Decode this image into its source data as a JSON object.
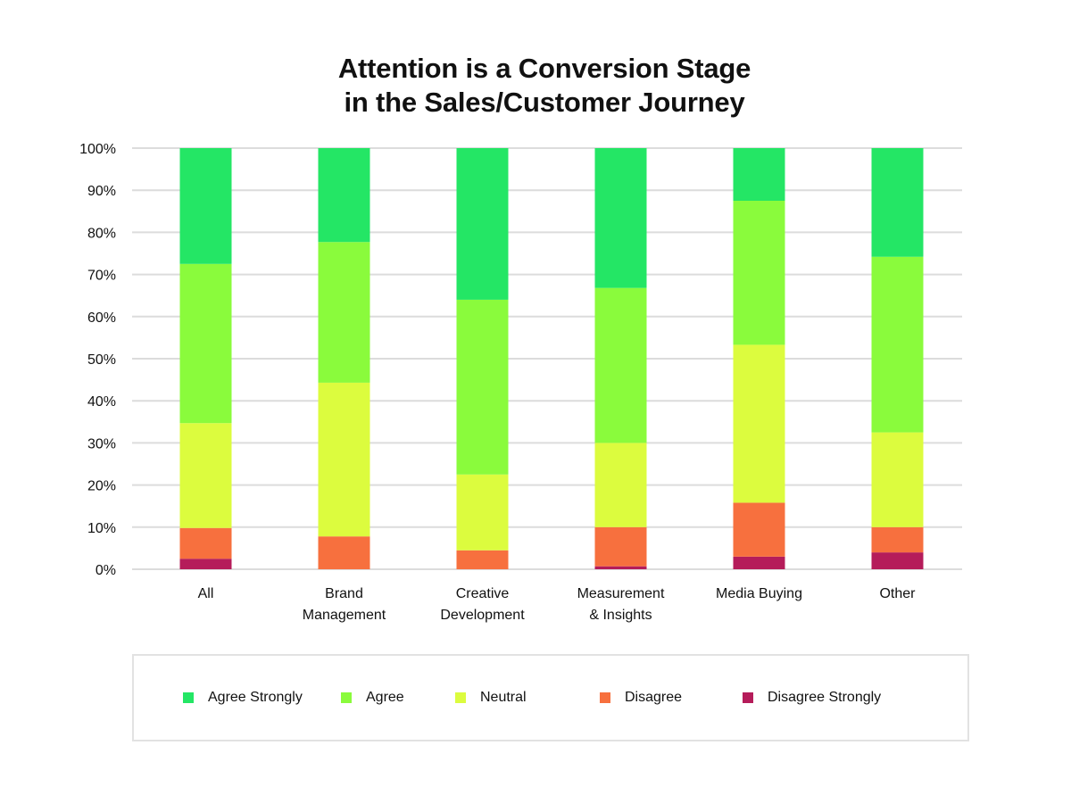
{
  "chart_data": {
    "type": "bar",
    "stacked": true,
    "title_lines": [
      "Attention is a Conversion Stage",
      "in the Sales/Customer Journey"
    ],
    "categories": [
      [
        "All"
      ],
      [
        "Brand",
        "Management"
      ],
      [
        "Creative",
        "Development"
      ],
      [
        "Measurement",
        "& Insights"
      ],
      [
        "Media Buying"
      ],
      [
        "Other"
      ]
    ],
    "yticks": [
      "0%",
      "10%",
      "20%",
      "30%",
      "40%",
      "50%",
      "60%",
      "70%",
      "80%",
      "90%",
      "100%"
    ],
    "ylim": [
      0,
      100
    ],
    "grid": true,
    "legend_position": "bottom",
    "series": [
      {
        "name": "Disagree Strongly",
        "color": "#b51c5a",
        "values": [
          2.5,
          0,
          0,
          0.7,
          3,
          4
        ]
      },
      {
        "name": "Disagree",
        "color": "#f7703e",
        "values": [
          7.3,
          7.8,
          4.5,
          9.3,
          12.8,
          6
        ]
      },
      {
        "name": "Neutral",
        "color": "#dcfc3e",
        "values": [
          24.9,
          36.5,
          18,
          20,
          37.5,
          22.5
        ]
      },
      {
        "name": "Agree",
        "color": "#8afb3c",
        "values": [
          37.8,
          33.4,
          41.5,
          36.8,
          34.2,
          41.7
        ]
      },
      {
        "name": "Agree Strongly",
        "color": "#24e665",
        "values": [
          27.5,
          22.3,
          36,
          33.2,
          12.5,
          25.8
        ]
      }
    ],
    "legend_order": [
      "Agree Strongly",
      "Agree",
      "Neutral",
      "Disagree",
      "Disagree Strongly"
    ]
  }
}
